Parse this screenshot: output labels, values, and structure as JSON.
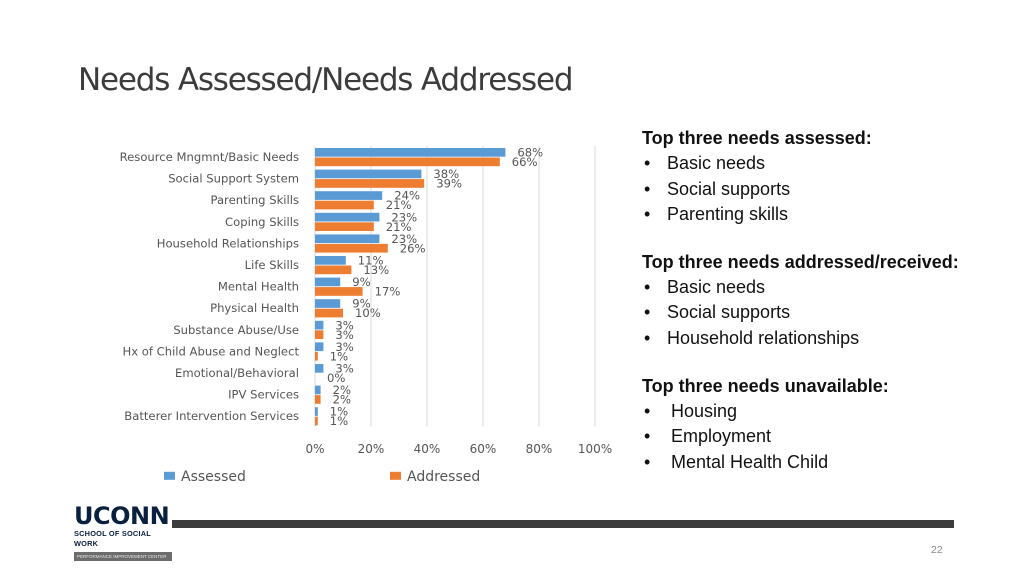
{
  "title": "Needs Assessed/Needs Addressed",
  "chart_data": {
    "type": "bar",
    "orientation": "horizontal",
    "categories": [
      "Resource Mngmnt/Basic Needs",
      "Social Support System",
      "Parenting Skills",
      "Coping Skills",
      "Household Relationships",
      "Life Skills",
      "Mental Health",
      "Physical Health",
      "Substance Abuse/Use",
      "Hx of Child Abuse and Neglect",
      "Emotional/Behavioral",
      "IPV Services",
      "Batterer Intervention Services"
    ],
    "series": [
      {
        "name": "Assessed",
        "color": "#5b9bd5",
        "values": [
          68,
          38,
          24,
          23,
          23,
          11,
          9,
          9,
          3,
          3,
          3,
          2,
          1
        ]
      },
      {
        "name": "Addressed",
        "color": "#ed7d31",
        "values": [
          66,
          39,
          21,
          21,
          26,
          13,
          17,
          10,
          3,
          1,
          0,
          2,
          1
        ]
      }
    ],
    "xlim": [
      0,
      100
    ],
    "xticks": [
      "0%",
      "20%",
      "40%",
      "60%",
      "80%",
      "100%"
    ],
    "value_suffix": "%",
    "grid": true,
    "legend_position": "bottom"
  },
  "panel": {
    "sections": [
      {
        "heading": "Top three needs assessed:",
        "items": [
          "Basic needs",
          "Social supports",
          "Parenting skills"
        ]
      },
      {
        "heading": "Top three needs addressed/received:",
        "items": [
          "Basic needs",
          "Social supports",
          "Household relationships"
        ]
      },
      {
        "heading": "Top three needs unavailable:",
        "items": [
          "Housing",
          "Employment",
          "Mental Health Child"
        ]
      }
    ]
  },
  "logo": {
    "wordmark": "UCONN",
    "subtitle": "SCHOOL OF SOCIAL WORK",
    "bar_text": "PERFORMANCE IMPROVEMENT CENTER"
  },
  "page_number": "22"
}
